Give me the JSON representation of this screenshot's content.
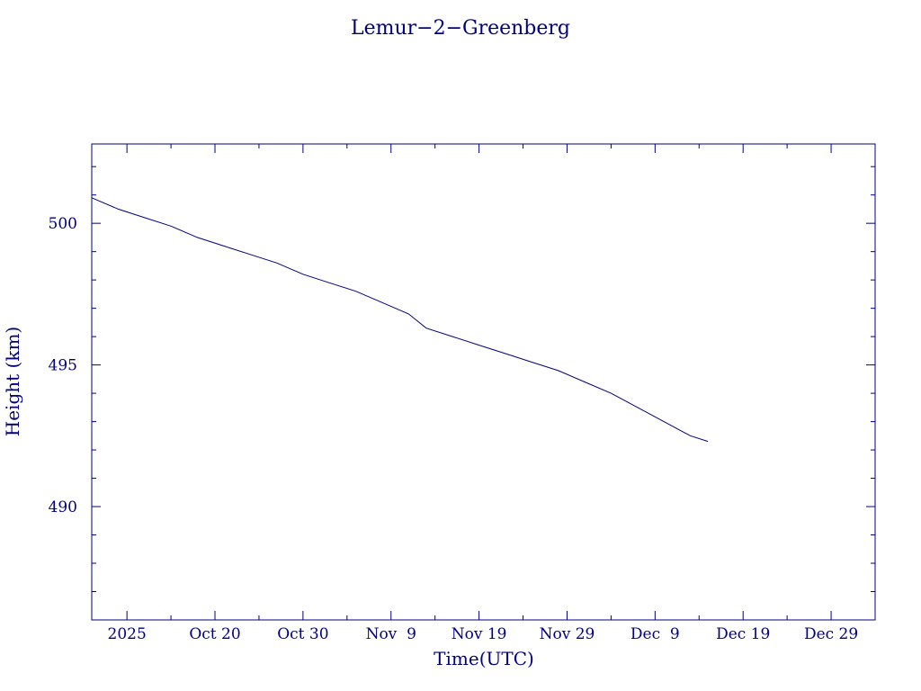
{
  "chart_data": {
    "type": "line",
    "title": "Lemur−2−Greenberg",
    "xlabel": "Time(UTC)",
    "ylabel": "Height (km)",
    "color": "#00007f",
    "x_range": [
      "2025-10-06",
      "2026-01-03"
    ],
    "ylim": [
      486,
      502.8
    ],
    "x_tick_labels": [
      {
        "date": "2025-10-10",
        "label": "2025"
      },
      {
        "date": "2025-10-20",
        "label": "Oct 20"
      },
      {
        "date": "2025-10-30",
        "label": "Oct 30"
      },
      {
        "date": "2025-11-09",
        "label": "Nov  9"
      },
      {
        "date": "2025-11-19",
        "label": "Nov 19"
      },
      {
        "date": "2025-11-29",
        "label": "Nov 29"
      },
      {
        "date": "2025-12-09",
        "label": "Dec  9"
      },
      {
        "date": "2025-12-19",
        "label": "Dec 19"
      },
      {
        "date": "2025-12-29",
        "label": "Dec 29"
      }
    ],
    "y_ticks": [
      490,
      495,
      500
    ],
    "series": [
      {
        "x": [
          "2025-10-06",
          "2025-10-09",
          "2025-10-12",
          "2025-10-15",
          "2025-10-18",
          "2025-10-21",
          "2025-10-24",
          "2025-10-27",
          "2025-10-30",
          "2025-11-02",
          "2025-11-05",
          "2025-11-08",
          "2025-11-11",
          "2025-11-13",
          "2025-11-16",
          "2025-11-19",
          "2025-11-22",
          "2025-11-25",
          "2025-11-28",
          "2025-12-01",
          "2025-12-04",
          "2025-12-07",
          "2025-12-10",
          "2025-12-13",
          "2025-12-15"
        ],
        "y": [
          500.9,
          500.5,
          500.2,
          499.9,
          499.5,
          499.2,
          498.9,
          498.6,
          498.2,
          497.9,
          497.6,
          497.2,
          496.8,
          496.3,
          496.0,
          495.7,
          495.4,
          495.1,
          494.8,
          494.4,
          494.0,
          493.5,
          493.0,
          492.5,
          492.3
        ]
      }
    ]
  }
}
